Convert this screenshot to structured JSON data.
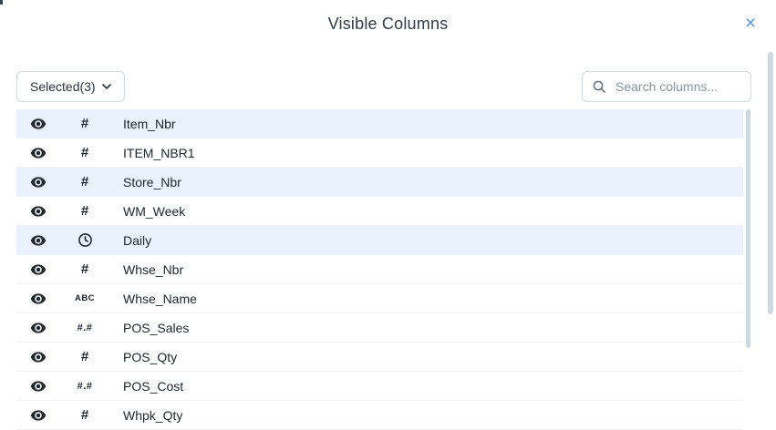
{
  "header": {
    "title": "Visible Columns",
    "close_glyph": "×"
  },
  "toolbar": {
    "selected_dropdown": {
      "label": "Selected(3)"
    },
    "search": {
      "placeholder": "Search columns...",
      "value": ""
    }
  },
  "columns": [
    {
      "label": "Item_Nbr",
      "type": "number",
      "selected": true,
      "visible": true
    },
    {
      "label": "ITEM_NBR1",
      "type": "number",
      "selected": false,
      "visible": true
    },
    {
      "label": "Store_Nbr",
      "type": "number",
      "selected": true,
      "visible": true
    },
    {
      "label": "WM_Week",
      "type": "number",
      "selected": false,
      "visible": true
    },
    {
      "label": "Daily",
      "type": "time",
      "selected": true,
      "visible": true
    },
    {
      "label": "Whse_Nbr",
      "type": "number",
      "selected": false,
      "visible": true
    },
    {
      "label": "Whse_Name",
      "type": "text",
      "selected": false,
      "visible": true
    },
    {
      "label": "POS_Sales",
      "type": "decimal",
      "selected": false,
      "visible": true
    },
    {
      "label": "POS_Qty",
      "type": "number",
      "selected": false,
      "visible": true
    },
    {
      "label": "POS_Cost",
      "type": "decimal",
      "selected": false,
      "visible": true
    },
    {
      "label": "Whpk_Qty",
      "type": "number",
      "selected": false,
      "visible": true,
      "partially_clipped": true
    }
  ],
  "type_icon_glyphs": {
    "number": "#",
    "decimal": "#.#",
    "text": "ABC",
    "time": "clock"
  },
  "colors": {
    "accent_blue": "#5b9be0",
    "selected_row_bg": "#e9f2fc",
    "control_border": "#d3d9df",
    "icon_dark": "#20262e",
    "placeholder_gray": "#8a93a1",
    "scrollbar_thumb": "#cfd9e1"
  }
}
